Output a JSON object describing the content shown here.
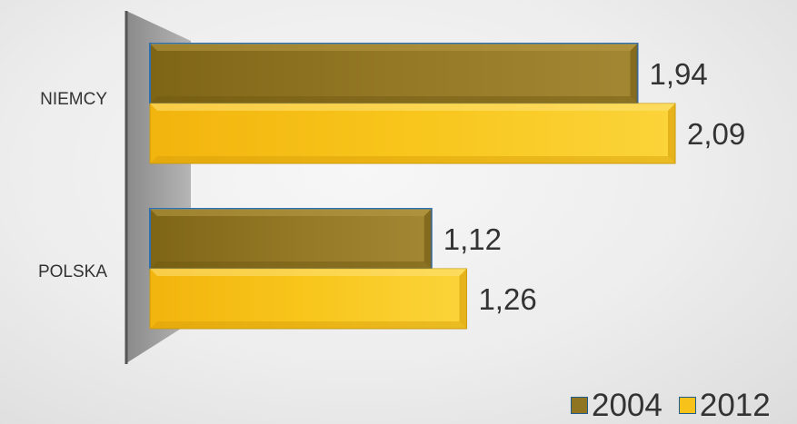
{
  "chart_data": {
    "type": "bar",
    "orientation": "horizontal",
    "style": "3d",
    "categories": [
      "NIEMCY",
      "POLSKA"
    ],
    "series": [
      {
        "name": "2004",
        "values": [
          1.94,
          1.12
        ],
        "color": "#8f7422"
      },
      {
        "name": "2012",
        "values": [
          2.09,
          1.26
        ],
        "color": "#f7c21a"
      }
    ],
    "data_labels": {
      "NIEMCY": [
        "1,94",
        "2,09"
      ],
      "POLSKA": [
        "1,12",
        "1,26"
      ]
    },
    "xlim": [
      0,
      2.09
    ],
    "title": "",
    "xlabel": "",
    "ylabel": "",
    "grid": false,
    "legend_position": "bottom-right",
    "colors": {
      "series_2004": "#8f7422",
      "series_2012": "#f7c21a",
      "edge_highlight": "#2f6fb0",
      "axis_wall": "#9c9c9c",
      "axis_line": "#555555",
      "text": "#333333"
    }
  }
}
